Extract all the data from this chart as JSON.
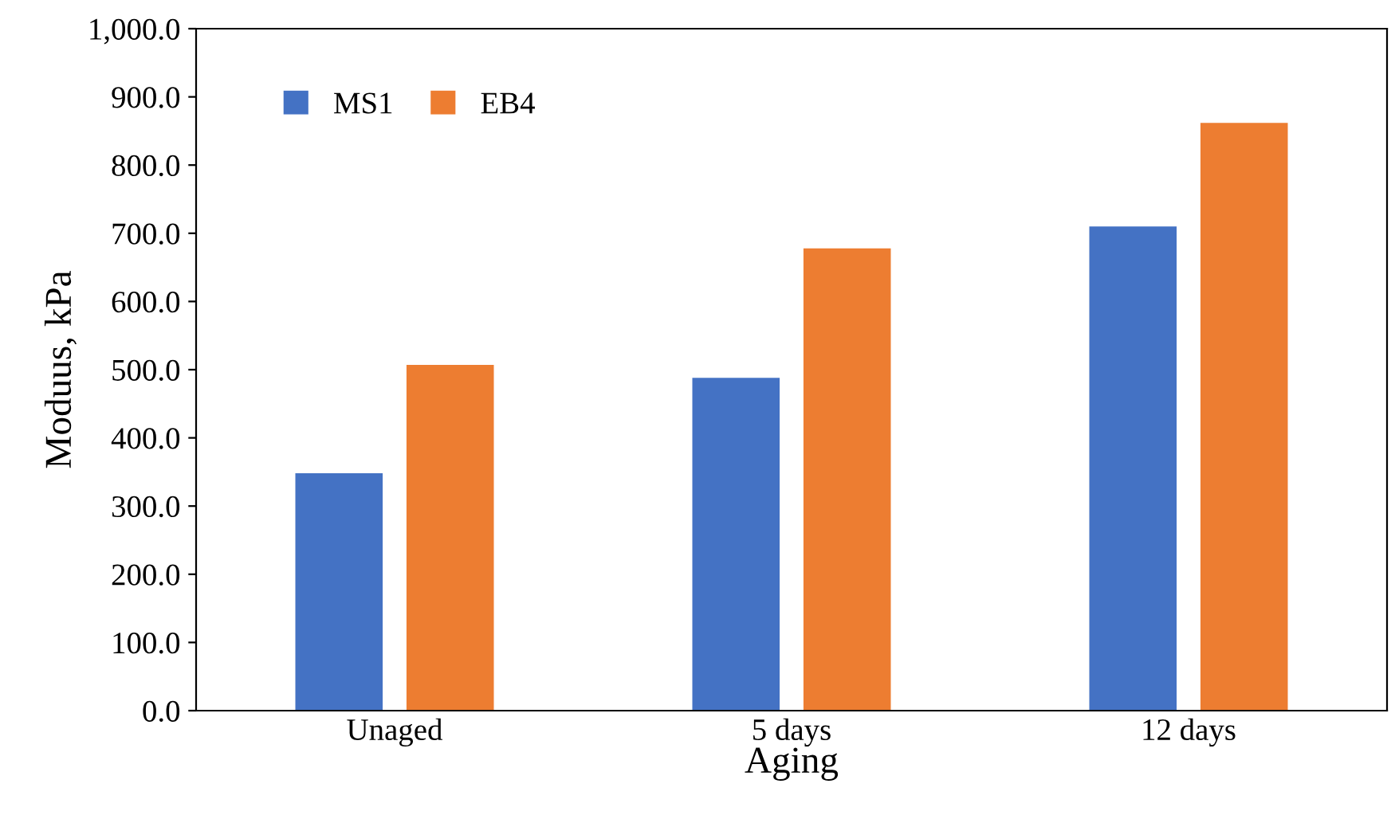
{
  "chart_data": {
    "type": "bar",
    "xlabel": "Aging",
    "ylabel": "Moduus, kPa",
    "categories": [
      "Unaged",
      "5 days",
      "12 days"
    ],
    "series": [
      {
        "name": "MS1",
        "color": "#4472c4",
        "values": [
          348,
          488,
          710
        ]
      },
      {
        "name": "EB4",
        "color": "#ed7d31",
        "values": [
          507,
          678,
          862
        ]
      }
    ],
    "ylim": [
      0,
      1000
    ],
    "yticks": [
      {
        "value": 0,
        "label": "0.0"
      },
      {
        "value": 100,
        "label": "100.0"
      },
      {
        "value": 200,
        "label": "200.0"
      },
      {
        "value": 300,
        "label": "300.0"
      },
      {
        "value": 400,
        "label": "400.0"
      },
      {
        "value": 500,
        "label": "500.0"
      },
      {
        "value": 600,
        "label": "600.0"
      },
      {
        "value": 700,
        "label": "700.0"
      },
      {
        "value": 800,
        "label": "800.0"
      },
      {
        "value": 900,
        "label": "900.0"
      },
      {
        "value": 1000,
        "label": "1,000.0"
      }
    ],
    "grid": false,
    "legend": "top left"
  }
}
